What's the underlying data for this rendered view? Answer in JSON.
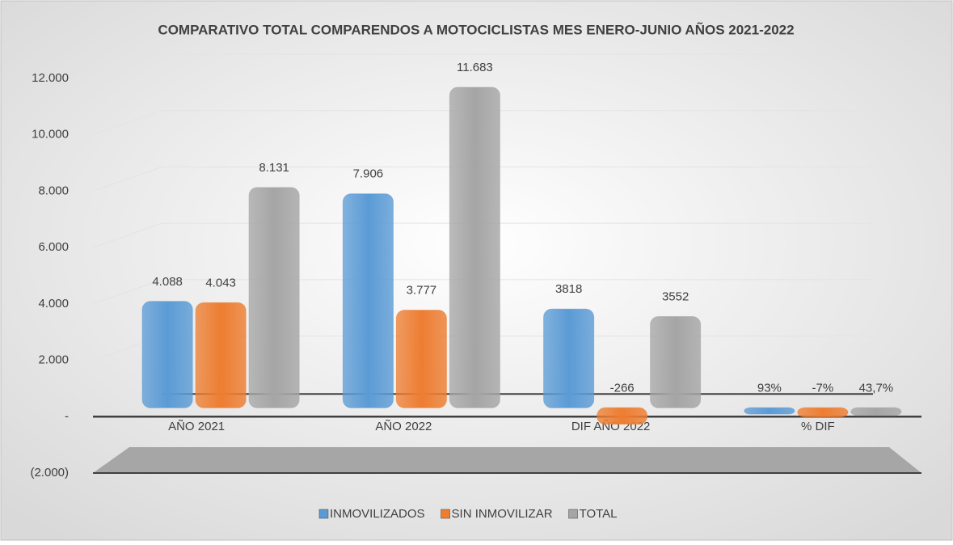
{
  "chart_data": {
    "type": "bar3d",
    "title": "COMPARATIVO TOTAL COMPARENDOS A MOTOCICLISTAS MES ENERO-JUNIO AÑOS 2021-2022",
    "categories": [
      "AÑO 2021",
      "AÑO 2022",
      "DIF AÑO 2022",
      "% DIF"
    ],
    "series": [
      {
        "name": "INMOVILIZADOS",
        "color": "#5b9bd5",
        "values": [
          4088,
          7906,
          3818,
          93
        ],
        "value_labels": [
          "4.088",
          "7.906",
          "3818",
          "93%"
        ]
      },
      {
        "name": "SIN INMOVILIZAR",
        "color": "#ed7d31",
        "values": [
          4043,
          3777,
          -266,
          -7
        ],
        "value_labels": [
          "4.043",
          "3.777",
          "-266",
          "-7%"
        ]
      },
      {
        "name": "TOTAL",
        "color": "#a5a5a5",
        "values": [
          8131,
          11683,
          3552,
          43.7
        ],
        "value_labels": [
          "8.131",
          "11.683",
          "3552",
          "43,7%"
        ]
      }
    ],
    "ylim": [
      -2000,
      12000
    ],
    "yticks": [
      {
        "value": -2000,
        "label": "(2.000)"
      },
      {
        "value": 0,
        "label": "-"
      },
      {
        "value": 2000,
        "label": "2.000"
      },
      {
        "value": 4000,
        "label": "4.000"
      },
      {
        "value": 6000,
        "label": "6.000"
      },
      {
        "value": 8000,
        "label": "8.000"
      },
      {
        "value": 10000,
        "label": "10.000"
      },
      {
        "value": 12000,
        "label": "12.000"
      }
    ],
    "grid": true,
    "legend": "bottom"
  }
}
